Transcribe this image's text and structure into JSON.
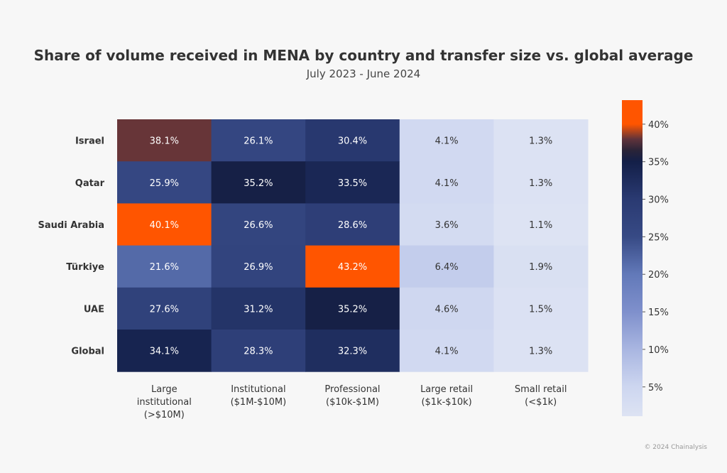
{
  "chart_data": {
    "type": "heatmap",
    "title": "Share of volume received in MENA by country and transfer size vs. global average",
    "subtitle": "July 2023 - June 2024",
    "rows": [
      "Israel",
      "Qatar",
      "Saudi Arabia",
      "Türkiye",
      "UAE",
      "Global"
    ],
    "columns": [
      [
        "Large",
        "institutional",
        "(>$10M)"
      ],
      [
        "Institutional",
        "($1M-$10M)"
      ],
      [
        "Professional",
        "($10k-$1M)"
      ],
      [
        "Large retail",
        "($1k-$10k)"
      ],
      [
        "Small retail",
        "(<$1k)"
      ]
    ],
    "values": [
      [
        38.1,
        26.1,
        30.4,
        4.1,
        1.3
      ],
      [
        25.9,
        35.2,
        33.5,
        4.1,
        1.3
      ],
      [
        40.1,
        26.6,
        28.6,
        3.6,
        1.1
      ],
      [
        21.6,
        26.9,
        43.2,
        6.4,
        1.9
      ],
      [
        27.6,
        31.2,
        35.2,
        4.6,
        1.5
      ],
      [
        34.1,
        28.3,
        32.3,
        4.1,
        1.3
      ]
    ],
    "value_suffix": "%",
    "colorbar": {
      "range": [
        1.1,
        43.2
      ],
      "ticks": [
        5,
        10,
        15,
        20,
        25,
        30,
        35,
        40
      ],
      "tick_labels": [
        "5%",
        "10%",
        "15%",
        "20%",
        "25%",
        "30%",
        "35%",
        "40%"
      ],
      "stops": [
        [
          1,
          "#dde3f3"
        ],
        [
          5,
          "#cdd6f0"
        ],
        [
          10,
          "#a9b6e1"
        ],
        [
          15,
          "#7f90cc"
        ],
        [
          20,
          "#6279b9"
        ],
        [
          25,
          "#374a85"
        ],
        [
          30,
          "#2a3a72"
        ],
        [
          35,
          "#131f48"
        ],
        [
          36.5,
          "#2a2438"
        ],
        [
          38,
          "#5f333b"
        ],
        [
          40,
          "#ff5500"
        ],
        [
          43.2,
          "#ff5500"
        ]
      ]
    }
  },
  "credit": "© 2024 Chainalysis"
}
